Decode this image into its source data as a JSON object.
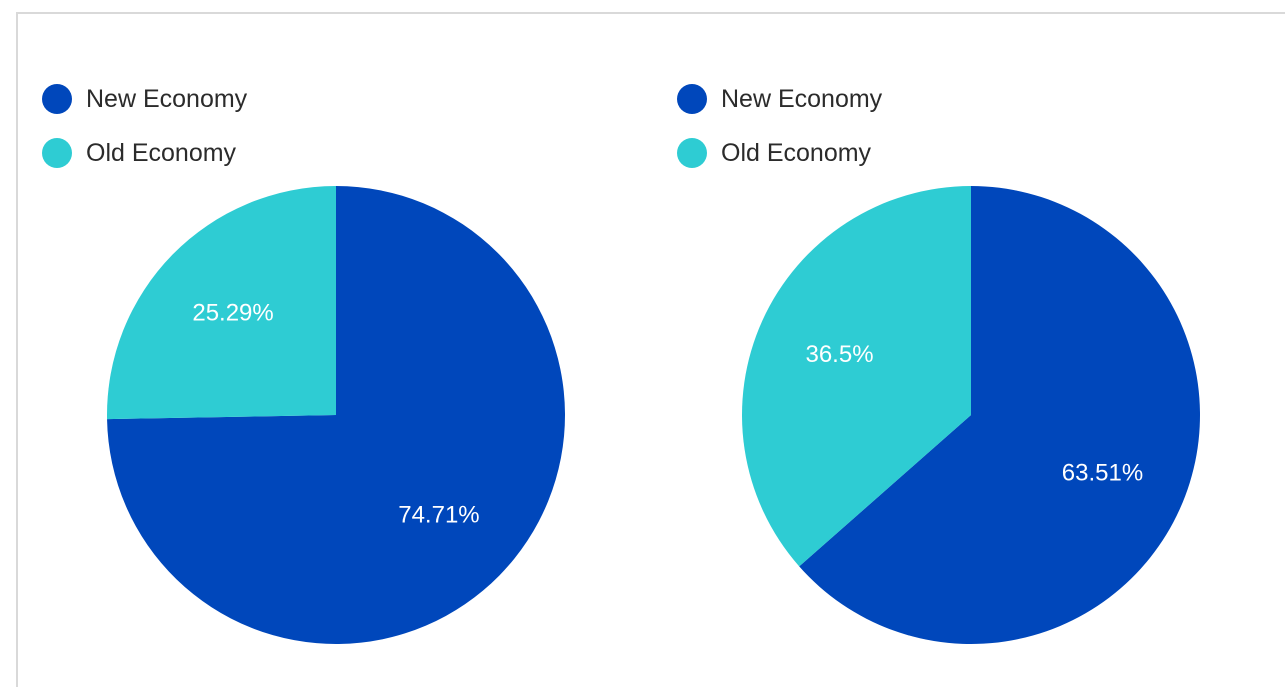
{
  "colors": {
    "new_economy": "#0047BB",
    "old_economy": "#2ECCD3"
  },
  "chart_data": [
    {
      "type": "pie",
      "legend": [
        "New Economy",
        "Old Economy"
      ],
      "legend_position": "top-left",
      "slices": [
        {
          "label": "New Economy",
          "value": 74.71,
          "display": "74.71%"
        },
        {
          "label": "Old Economy",
          "value": 25.29,
          "display": "25.29%"
        }
      ]
    },
    {
      "type": "pie",
      "legend": [
        "New Economy",
        "Old Economy"
      ],
      "legend_position": "top-left",
      "slices": [
        {
          "label": "New Economy",
          "value": 63.51,
          "display": "63.51%"
        },
        {
          "label": "Old Economy",
          "value": 36.5,
          "display": "36.5%"
        }
      ]
    }
  ]
}
